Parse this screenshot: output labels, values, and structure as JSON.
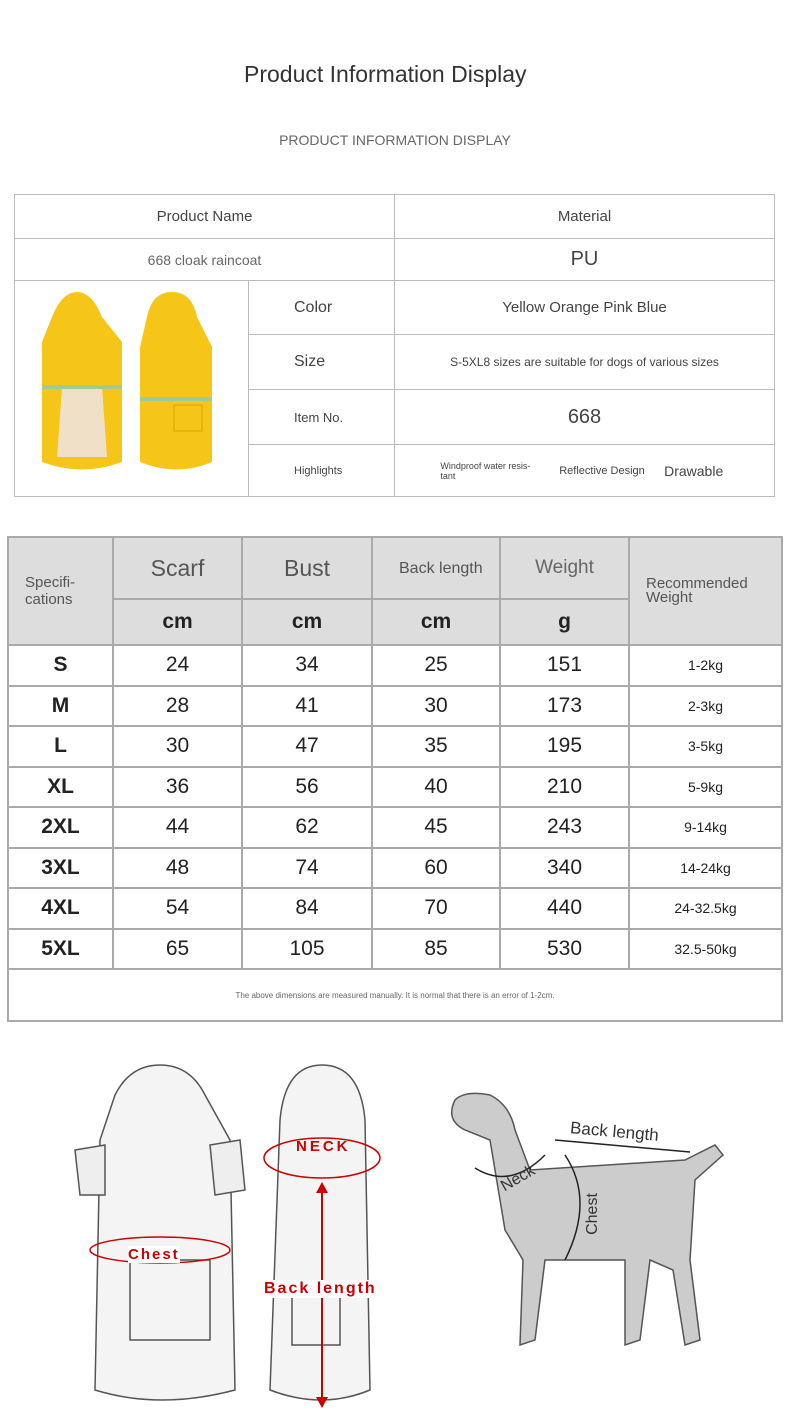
{
  "header": {
    "title": "Product Information Display",
    "subtitle": "PRODUCT INFORMATION DISPLAY"
  },
  "info_table": {
    "product_name_label": "Product Name",
    "material_label": "Material",
    "product_name": "668 cloak raincoat",
    "material": "PU",
    "rows": [
      {
        "label": "Color",
        "value": "Yellow Orange Pink Blue"
      },
      {
        "label": "Size",
        "value": "S-5XL8 sizes are suitable for dogs of various sizes"
      },
      {
        "label": "Item No.",
        "value": "668"
      }
    ],
    "highlights_label": "Highlights",
    "highlights": [
      "Windproof water resis-tant",
      "Reflective Design",
      "Drawable"
    ],
    "product_color": "#f5c518"
  },
  "size_table": {
    "headers": {
      "spec": "Specifi-cations",
      "scarf": "Scarf",
      "bust": "Bust",
      "back": "Back length",
      "weight": "Weight",
      "recommended": "Recommended Weight"
    },
    "units": {
      "scarf": "cm",
      "bust": "cm",
      "back": "cm",
      "weight": "g"
    },
    "rows": [
      [
        "S",
        "24",
        "34",
        "25",
        "151",
        "1-2kg"
      ],
      [
        "M",
        "28",
        "41",
        "30",
        "173",
        "2-3kg"
      ],
      [
        "L",
        "30",
        "47",
        "35",
        "195",
        "3-5kg"
      ],
      [
        "XL",
        "36",
        "56",
        "40",
        "210",
        "5-9kg"
      ],
      [
        "2XL",
        "44",
        "62",
        "45",
        "243",
        "9-14kg"
      ],
      [
        "3XL",
        "48",
        "74",
        "60",
        "340",
        "14-24kg"
      ],
      [
        "4XL",
        "54",
        "84",
        "70",
        "440",
        "24-32.5kg"
      ],
      [
        "5XL",
        "65",
        "105",
        "85",
        "530",
        "32.5-50kg"
      ]
    ],
    "note": "The above dimensions are measured manually. It is normal that there is an error of 1-2cm."
  },
  "diagram": {
    "coat_neck": "NECK",
    "coat_chest": "Chest",
    "coat_back": "Back length",
    "dog_back": "Back length",
    "dog_neck": "Neck",
    "dog_chest": "Chest"
  }
}
